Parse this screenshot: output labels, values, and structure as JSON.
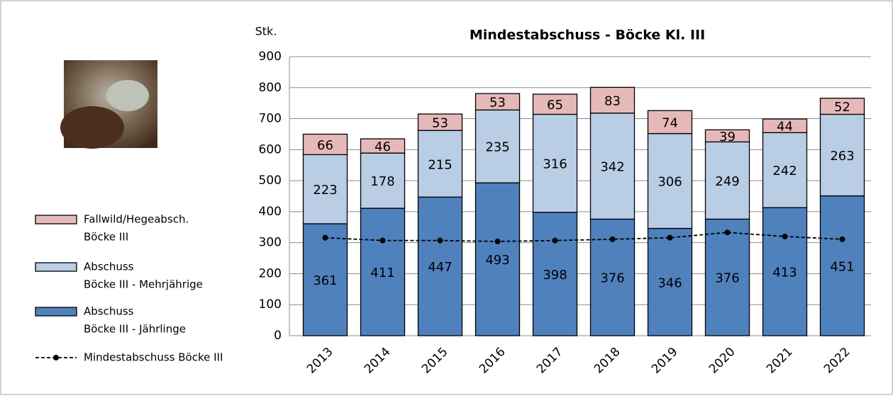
{
  "chart_data": {
    "type": "bar",
    "title": "Mindestabschuss - Böcke  Kl. III",
    "y_axis_label": "Stk.",
    "categories": [
      "2013",
      "2014",
      "2015",
      "2016",
      "2017",
      "2018",
      "2019",
      "2020",
      "2021",
      "2022"
    ],
    "stacked": true,
    "series": [
      {
        "name": [
          "Abschuss",
          "Böcke III - Jährlinge"
        ],
        "color": "#4f81bd",
        "values": [
          361,
          411,
          447,
          493,
          398,
          376,
          346,
          376,
          413,
          451
        ]
      },
      {
        "name": [
          "Abschuss",
          "Böcke III - Mehrjährige"
        ],
        "color": "#b9cde5",
        "values": [
          223,
          178,
          215,
          235,
          316,
          342,
          306,
          249,
          242,
          263
        ]
      },
      {
        "name": [
          "Fallwild/Hegeabsch.",
          "Böcke III"
        ],
        "color": "#e6b9b8",
        "values": [
          66,
          46,
          53,
          53,
          65,
          83,
          74,
          39,
          44,
          52
        ]
      },
      {
        "name": [
          "Mindestabschuss Böcke III"
        ],
        "type": "line",
        "color": "#000000",
        "values": [
          316,
          307,
          307,
          304,
          307,
          311,
          316,
          333,
          320,
          311
        ]
      }
    ],
    "ylim": [
      0,
      900
    ],
    "yticks": [
      0,
      100,
      200,
      300,
      400,
      500,
      600,
      700,
      800,
      900
    ],
    "grid": true
  }
}
